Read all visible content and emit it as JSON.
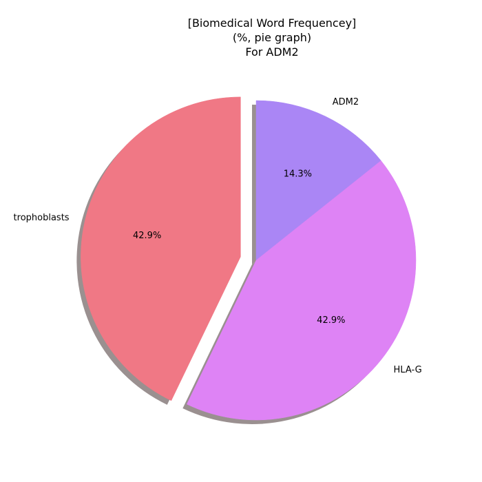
{
  "chart_data": {
    "type": "pie",
    "title_lines": [
      "[Biomedical Word Frequencey]",
      "(%, pie graph)",
      "For ADM2"
    ],
    "slices": [
      {
        "label": "ADM2",
        "value": 14.3,
        "pct_label": "14.3%",
        "color": "#aa86f5",
        "explode": false
      },
      {
        "label": "HLA-G",
        "value": 42.9,
        "pct_label": "42.9%",
        "color": "#de83f5",
        "explode": false
      },
      {
        "label": "trophoblasts",
        "value": 42.9,
        "pct_label": "42.9%",
        "color": "#f07885",
        "explode": true
      }
    ],
    "start_angle_deg": 90,
    "direction": "clockwise",
    "shadow": true,
    "shadow_color": "#9a9090"
  }
}
